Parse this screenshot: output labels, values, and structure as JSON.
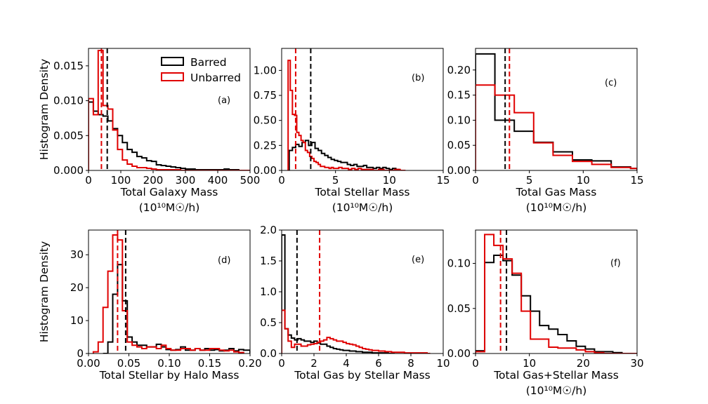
{
  "figure": {
    "ylabel": "Histogram Density",
    "unit_line": "(10¹⁰M☉/h)",
    "legend": [
      {
        "name": "Barred",
        "color": "#000000"
      },
      {
        "name": "Unbarred",
        "color": "#e00000"
      }
    ]
  },
  "chart_data": [
    {
      "type": "histogram",
      "panel": "(a)",
      "xlabel": "Total Galaxy Mass",
      "unit_line": true,
      "ylabel": true,
      "legend": true,
      "xlim": [
        0,
        500
      ],
      "ylim": [
        0,
        0.0175
      ],
      "xticks": [
        0,
        100,
        200,
        300,
        400,
        500
      ],
      "yticks": [
        0,
        0.005,
        0.01,
        0.015
      ],
      "ytick_labels": [
        "0.000",
        "0.005",
        "0.010",
        "0.015"
      ],
      "xtick_labels": [
        "0",
        "100",
        "200",
        "300",
        "400",
        "500"
      ],
      "series": [
        {
          "name": "Barred",
          "color": "#000000",
          "median": 58,
          "edges": [
            0,
            15,
            30,
            45,
            60,
            75,
            90,
            105,
            120,
            135,
            150,
            165,
            180,
            195,
            210,
            225,
            240,
            255,
            270,
            285,
            300,
            315,
            330,
            345,
            360,
            375,
            390,
            405,
            420,
            435,
            450,
            465,
            480,
            500
          ],
          "values": [
            0.0098,
            0.0085,
            0.008,
            0.0078,
            0.0071,
            0.006,
            0.005,
            0.004,
            0.003,
            0.0026,
            0.002,
            0.0018,
            0.0014,
            0.0013,
            0.0008,
            0.0007,
            0.0006,
            0.0005,
            0.0004,
            0.0003,
            0.0002,
            0.0002,
            0.0001,
            0.0001,
            0.0001,
            0.0001,
            0.0001,
            0.0001,
            0.0002,
            0.0001,
            0.0001,
            0.0,
            0.0
          ]
        },
        {
          "name": "Unbarred",
          "color": "#e00000",
          "median": 40,
          "edges": [
            0,
            15,
            30,
            45,
            60,
            75,
            90,
            105,
            120,
            135,
            150,
            165,
            180,
            195,
            210,
            225,
            240,
            255,
            270,
            285,
            300,
            315,
            330,
            345,
            360,
            375,
            390,
            405,
            420,
            435,
            450,
            465,
            480,
            500
          ],
          "values": [
            0.0103,
            0.008,
            0.0172,
            0.0093,
            0.0088,
            0.0058,
            0.003,
            0.0015,
            0.0009,
            0.0006,
            0.0004,
            0.0004,
            0.0003,
            0.0002,
            0.0001,
            0.0001,
            0.0001,
            0.0001,
            0.0001,
            0.0,
            0.0,
            0.0,
            0.0,
            0.0,
            0.0,
            0.0,
            0.0,
            0.0,
            0.0,
            0.0,
            0.0,
            0.0,
            0.0
          ]
        }
      ]
    },
    {
      "type": "histogram",
      "panel": "(b)",
      "xlabel": "Total Stellar Mass",
      "unit_line": true,
      "ylabel": false,
      "legend": false,
      "xlim": [
        0,
        15
      ],
      "ylim": [
        0,
        1.22
      ],
      "xticks": [
        0,
        5,
        10,
        15
      ],
      "yticks": [
        0,
        0.25,
        0.5,
        0.75,
        1.0
      ],
      "ytick_labels": [
        "0.00",
        "0.25",
        "0.50",
        "0.75",
        "1.00"
      ],
      "xtick_labels": [
        "0",
        "5",
        "10",
        "15"
      ],
      "series": [
        {
          "name": "Barred",
          "color": "#000000",
          "median": 2.7,
          "edges": [
            0.7,
            1.0,
            1.3,
            1.6,
            1.9,
            2.2,
            2.5,
            2.8,
            3.1,
            3.4,
            3.7,
            4.0,
            4.3,
            4.6,
            4.9,
            5.2,
            5.5,
            5.8,
            6.1,
            6.4,
            6.7,
            7.0,
            7.3,
            7.6,
            7.9,
            8.2,
            8.5,
            8.8,
            9.1,
            9.4,
            9.7,
            10.0,
            10.3,
            10.6,
            10.9
          ],
          "values": [
            0.2,
            0.23,
            0.26,
            0.24,
            0.28,
            0.3,
            0.25,
            0.28,
            0.22,
            0.2,
            0.17,
            0.15,
            0.13,
            0.11,
            0.1,
            0.09,
            0.08,
            0.08,
            0.06,
            0.05,
            0.06,
            0.04,
            0.04,
            0.05,
            0.03,
            0.03,
            0.02,
            0.03,
            0.02,
            0.03,
            0.02,
            0.01,
            0.02,
            0.01
          ]
        },
        {
          "name": "Unbarred",
          "color": "#e00000",
          "median": 1.3,
          "edges": [
            0.6,
            0.8,
            1.0,
            1.2,
            1.4,
            1.6,
            1.8,
            2.0,
            2.2,
            2.4,
            2.6,
            2.8,
            3.0,
            3.2,
            3.4,
            3.6,
            3.8,
            4.0,
            4.2,
            4.4,
            4.6,
            4.8,
            5.0,
            5.3,
            5.6,
            5.9,
            6.2,
            6.5,
            6.8,
            7.1,
            7.4,
            7.7,
            8.0,
            8.5,
            9.0,
            9.5,
            10.0,
            10.5,
            11.0,
            11.5
          ],
          "values": [
            1.1,
            0.8,
            0.56,
            0.55,
            0.38,
            0.35,
            0.3,
            0.28,
            0.2,
            0.18,
            0.14,
            0.12,
            0.09,
            0.08,
            0.06,
            0.04,
            0.04,
            0.03,
            0.03,
            0.02,
            0.03,
            0.02,
            0.02,
            0.03,
            0.02,
            0.02,
            0.01,
            0.02,
            0.01,
            0.02,
            0.01,
            0.01,
            0.01,
            0.0,
            0.01,
            0.0,
            0.0,
            0.01,
            0.0
          ]
        }
      ]
    },
    {
      "type": "histogram",
      "panel": "(c)",
      "xlabel": "Total Gas Mass",
      "unit_line": true,
      "ylabel": false,
      "legend": false,
      "xlim": [
        0,
        15
      ],
      "ylim": [
        0,
        0.243
      ],
      "xticks": [
        0,
        5,
        10,
        15
      ],
      "yticks": [
        0,
        0.05,
        0.1,
        0.15,
        0.2
      ],
      "ytick_labels": [
        "0.00",
        "0.05",
        "0.10",
        "0.15",
        "0.20"
      ],
      "xtick_labels": [
        "0",
        "5",
        "10",
        "15"
      ],
      "series": [
        {
          "name": "Barred",
          "color": "#000000",
          "median": 2.75,
          "edges": [
            0,
            1.8,
            3.6,
            5.4,
            7.2,
            9.0,
            10.8,
            12.6,
            14.4,
            15.0
          ],
          "values": [
            0.232,
            0.1,
            0.078,
            0.056,
            0.037,
            0.021,
            0.019,
            0.007,
            0.004
          ]
        },
        {
          "name": "Unbarred",
          "color": "#e00000",
          "median": 3.15,
          "edges": [
            0,
            1.8,
            3.6,
            5.4,
            7.2,
            9.0,
            10.8,
            12.6,
            14.4,
            15.0
          ],
          "values": [
            0.17,
            0.15,
            0.115,
            0.055,
            0.03,
            0.018,
            0.012,
            0.006,
            0.004
          ]
        }
      ]
    },
    {
      "type": "histogram",
      "panel": "(d)",
      "xlabel": "Total Stellar by Halo Mass",
      "unit_line": false,
      "ylabel": true,
      "legend": false,
      "xlim": [
        0,
        0.2
      ],
      "ylim": [
        0,
        37.5
      ],
      "xticks": [
        0,
        0.05,
        0.1,
        0.15,
        0.2
      ],
      "yticks": [
        0,
        10,
        20,
        30
      ],
      "ytick_labels": [
        "0",
        "10",
        "20",
        "30"
      ],
      "xtick_labels": [
        "0.00",
        "0.05",
        "0.10",
        "0.15",
        "0.20"
      ],
      "series": [
        {
          "name": "Barred",
          "color": "#000000",
          "median": 0.046,
          "edges": [
            0.018,
            0.024,
            0.03,
            0.036,
            0.042,
            0.048,
            0.054,
            0.06,
            0.066,
            0.072,
            0.078,
            0.084,
            0.09,
            0.096,
            0.102,
            0.108,
            0.114,
            0.12,
            0.126,
            0.132,
            0.138,
            0.144,
            0.15,
            0.156,
            0.162,
            0.168,
            0.174,
            0.18,
            0.186,
            0.192,
            0.2
          ],
          "values": [
            0.0,
            3.5,
            18.0,
            27.0,
            16.0,
            5.0,
            3.5,
            2.5,
            2.5,
            2.0,
            2.0,
            2.8,
            2.0,
            1.2,
            1.0,
            1.2,
            2.0,
            1.0,
            1.0,
            1.5,
            1.0,
            1.5,
            1.0,
            1.2,
            0.8,
            1.0,
            1.5,
            0.8,
            1.2,
            1.0
          ]
        },
        {
          "name": "Unbarred",
          "color": "#e00000",
          "median": 0.036,
          "edges": [
            0.006,
            0.012,
            0.018,
            0.024,
            0.03,
            0.036,
            0.042,
            0.048,
            0.054,
            0.06,
            0.066,
            0.072,
            0.078,
            0.084,
            0.09,
            0.096,
            0.102,
            0.108,
            0.114,
            0.12,
            0.126,
            0.132,
            0.138,
            0.144,
            0.15,
            0.156,
            0.162,
            0.168,
            0.174,
            0.18,
            0.186,
            0.192
          ],
          "values": [
            0.5,
            3.5,
            14.0,
            25.0,
            36.0,
            34.5,
            13.0,
            3.5,
            2.5,
            2.0,
            1.5,
            2.0,
            2.0,
            1.5,
            2.5,
            1.5,
            1.0,
            1.0,
            1.5,
            1.5,
            1.0,
            1.5,
            1.0,
            1.0,
            1.5,
            1.5,
            1.0,
            0.8,
            1.0,
            0.5,
            0.3
          ]
        }
      ]
    },
    {
      "type": "histogram",
      "panel": "(e)",
      "xlabel": "Total Gas by Stellar Mass",
      "unit_line": false,
      "ylabel": false,
      "legend": false,
      "xlim": [
        0,
        10
      ],
      "ylim": [
        0,
        2.0
      ],
      "xticks": [
        0,
        2,
        4,
        6,
        8,
        10
      ],
      "yticks": [
        0,
        0.5,
        1.0,
        1.5,
        2.0
      ],
      "ytick_labels": [
        "0.0",
        "0.5",
        "1.0",
        "1.5",
        "2.0"
      ],
      "xtick_labels": [
        "0",
        "2",
        "4",
        "6",
        "8",
        "10"
      ],
      "series": [
        {
          "name": "Barred",
          "color": "#000000",
          "median": 0.95,
          "edges": [
            0.0,
            0.2,
            0.4,
            0.6,
            0.8,
            1.0,
            1.2,
            1.4,
            1.6,
            1.8,
            2.0,
            2.2,
            2.4,
            2.6,
            2.8,
            3.0,
            3.2,
            3.4,
            3.6,
            3.8,
            4.0,
            4.2,
            4.4,
            4.6,
            4.8,
            5.0,
            5.2,
            5.4,
            5.6,
            5.8,
            6.0,
            6.2,
            6.4,
            6.6,
            6.8,
            7.0
          ],
          "values": [
            1.92,
            0.4,
            0.3,
            0.25,
            0.22,
            0.24,
            0.22,
            0.2,
            0.2,
            0.18,
            0.2,
            0.17,
            0.15,
            0.15,
            0.12,
            0.1,
            0.08,
            0.07,
            0.06,
            0.05,
            0.05,
            0.04,
            0.04,
            0.03,
            0.03,
            0.02,
            0.02,
            0.02,
            0.01,
            0.01,
            0.01,
            0.01,
            0.01,
            0.0,
            0.0
          ]
        },
        {
          "name": "Unbarred",
          "color": "#e00000",
          "median": 2.35,
          "edges": [
            0.0,
            0.2,
            0.4,
            0.6,
            0.8,
            1.0,
            1.2,
            1.4,
            1.6,
            1.8,
            2.0,
            2.2,
            2.4,
            2.6,
            2.8,
            3.0,
            3.2,
            3.4,
            3.6,
            3.8,
            4.0,
            4.2,
            4.4,
            4.6,
            4.8,
            5.0,
            5.2,
            5.4,
            5.6,
            5.8,
            6.0,
            6.2,
            6.4,
            6.6,
            6.8,
            7.0,
            7.2,
            7.4,
            7.6,
            7.8,
            8.0,
            8.2,
            8.4,
            8.6,
            8.8,
            9.0,
            9.2
          ],
          "values": [
            0.7,
            0.4,
            0.2,
            0.1,
            0.15,
            0.15,
            0.12,
            0.12,
            0.14,
            0.15,
            0.16,
            0.18,
            0.2,
            0.22,
            0.26,
            0.24,
            0.22,
            0.2,
            0.2,
            0.18,
            0.16,
            0.15,
            0.14,
            0.12,
            0.1,
            0.08,
            0.07,
            0.06,
            0.05,
            0.05,
            0.04,
            0.04,
            0.03,
            0.03,
            0.02,
            0.02,
            0.02,
            0.02,
            0.01,
            0.01,
            0.01,
            0.01,
            0.01,
            0.01,
            0.01,
            0.0
          ]
        }
      ]
    },
    {
      "type": "histogram",
      "panel": "(f)",
      "xlabel": "Total Gas+Stellar Mass",
      "unit_line": true,
      "ylabel": false,
      "legend": false,
      "xlim": [
        0,
        30
      ],
      "ylim": [
        0,
        0.137
      ],
      "xticks": [
        0,
        10,
        20,
        30
      ],
      "yticks": [
        0,
        0.05,
        0.1
      ],
      "ytick_labels": [
        "0.00",
        "0.05",
        "0.10"
      ],
      "xtick_labels": [
        "0",
        "10",
        "20",
        "30"
      ],
      "series": [
        {
          "name": "Barred",
          "color": "#000000",
          "median": 5.75,
          "edges": [
            0,
            1.7,
            3.4,
            5.1,
            6.8,
            8.5,
            10.2,
            11.9,
            13.6,
            15.3,
            17.0,
            18.7,
            20.4,
            22.1,
            23.8,
            25.5,
            27.2,
            28.9,
            30.0
          ],
          "values": [
            0.003,
            0.101,
            0.109,
            0.103,
            0.087,
            0.064,
            0.047,
            0.031,
            0.027,
            0.021,
            0.014,
            0.008,
            0.005,
            0.002,
            0.002,
            0.001,
            0.0,
            0.0
          ]
        },
        {
          "name": "Unbarred",
          "color": "#e00000",
          "median": 4.65,
          "edges": [
            0,
            1.7,
            3.4,
            5.1,
            6.8,
            8.5,
            10.2,
            11.9,
            13.6,
            15.3,
            17.0,
            18.7,
            20.4,
            22.1,
            23.8,
            25.5,
            27.2,
            28.9,
            30.0
          ],
          "values": [
            0.002,
            0.132,
            0.12,
            0.105,
            0.089,
            0.047,
            0.016,
            0.016,
            0.007,
            0.006,
            0.006,
            0.004,
            0.002,
            0.001,
            0.0,
            0.0,
            0.0,
            0.0
          ]
        }
      ]
    }
  ]
}
